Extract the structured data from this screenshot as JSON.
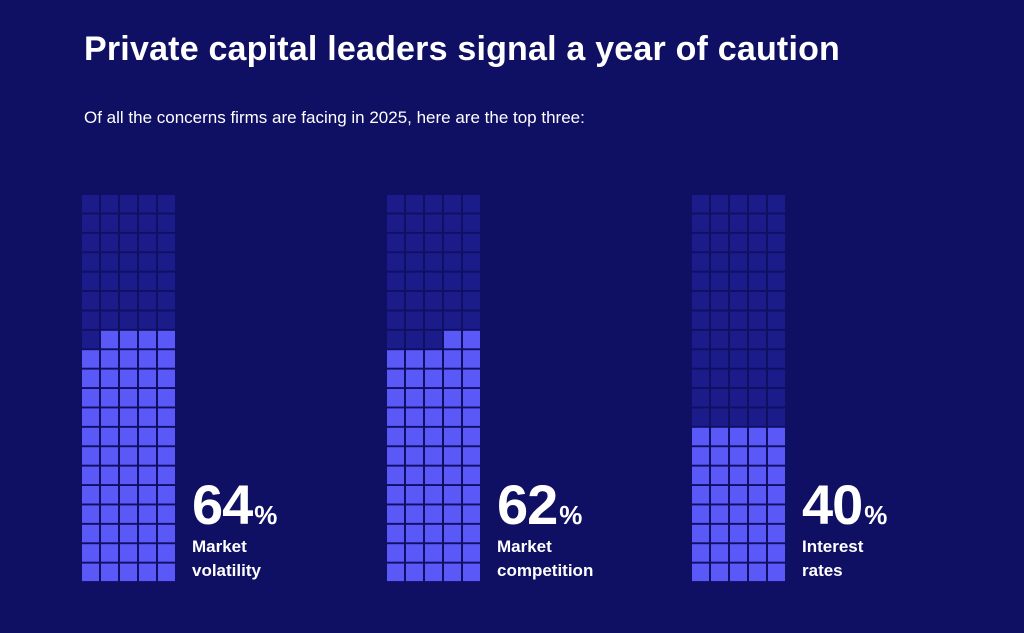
{
  "header": {
    "title": "Private capital leaders signal a year of caution",
    "subtitle": "Of all the concerns firms are facing in 2025, here are the top three:"
  },
  "colors": {
    "background": "#0f1063",
    "filled_cell": "#5a58f6",
    "empty_cell": "#1b1c8a",
    "text": "#ffffff"
  },
  "chart_data": {
    "type": "waffle",
    "title": "Private capital leaders signal a year of caution",
    "subtitle": "Of all the concerns firms are facing in 2025, here are the top three:",
    "units": "%",
    "grid": {
      "rows": 20,
      "cols": 5,
      "total_cells": 100
    },
    "categories": [
      "Market volatility",
      "Market competition",
      "Interest rates"
    ],
    "values": [
      64,
      62,
      40
    ],
    "items": [
      {
        "value": 64,
        "value_text": "64",
        "unit": "%",
        "label_line1": "Market",
        "label_line2": "volatility"
      },
      {
        "value": 62,
        "value_text": "62",
        "unit": "%",
        "label_line1": "Market",
        "label_line2": "competition"
      },
      {
        "value": 40,
        "value_text": "40",
        "unit": "%",
        "label_line1": "Interest",
        "label_line2": "rates"
      }
    ]
  }
}
